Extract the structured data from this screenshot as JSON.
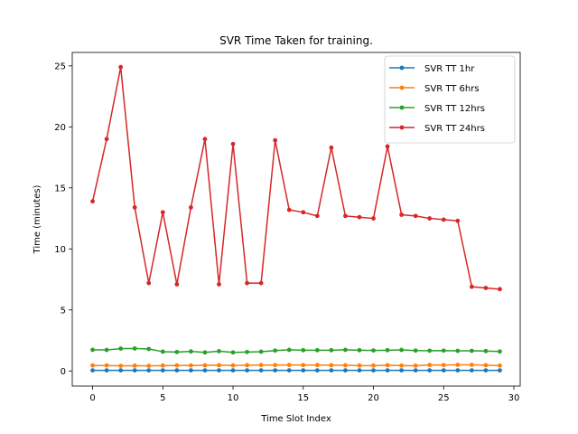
{
  "chart_data": {
    "type": "line",
    "title": "SVR Time Taken for training.",
    "xlabel": "Time Slot Index",
    "ylabel": "Time (minutes)",
    "xlim": [
      -1.45,
      30.45
    ],
    "ylim": [
      -1.24,
      26.1
    ],
    "x_ticks": [
      0,
      5,
      10,
      15,
      20,
      25,
      30
    ],
    "y_ticks": [
      0,
      5,
      10,
      15,
      20,
      25
    ],
    "grid": false,
    "legend_position": "top-right",
    "x": [
      0,
      1,
      2,
      3,
      4,
      5,
      6,
      7,
      8,
      9,
      10,
      11,
      12,
      13,
      14,
      15,
      16,
      17,
      18,
      19,
      20,
      21,
      22,
      23,
      24,
      25,
      26,
      27,
      28,
      29
    ],
    "series": [
      {
        "name": "SVR TT 1hr",
        "color": "#1f77b4",
        "values": [
          0.05,
          0.05,
          0.05,
          0.05,
          0.05,
          0.05,
          0.05,
          0.05,
          0.05,
          0.05,
          0.05,
          0.05,
          0.05,
          0.05,
          0.05,
          0.05,
          0.05,
          0.05,
          0.05,
          0.05,
          0.05,
          0.05,
          0.05,
          0.05,
          0.05,
          0.05,
          0.05,
          0.05,
          0.05,
          0.05
        ]
      },
      {
        "name": "SVR TT 6hrs",
        "color": "#ff7f0e",
        "values": [
          0.45,
          0.45,
          0.42,
          0.43,
          0.42,
          0.44,
          0.45,
          0.45,
          0.46,
          0.47,
          0.45,
          0.47,
          0.48,
          0.48,
          0.49,
          0.48,
          0.48,
          0.47,
          0.46,
          0.44,
          0.44,
          0.47,
          0.44,
          0.43,
          0.49,
          0.48,
          0.5,
          0.5,
          0.47,
          0.44
        ]
      },
      {
        "name": "SVR TT 12hrs",
        "color": "#2ca02c",
        "values": [
          1.73,
          1.72,
          1.83,
          1.84,
          1.8,
          1.58,
          1.55,
          1.6,
          1.52,
          1.62,
          1.52,
          1.55,
          1.58,
          1.67,
          1.73,
          1.7,
          1.7,
          1.7,
          1.73,
          1.7,
          1.68,
          1.7,
          1.72,
          1.67,
          1.66,
          1.67,
          1.65,
          1.65,
          1.63,
          1.59
        ]
      },
      {
        "name": "SVR TT 24hrs",
        "color": "#d62728",
        "values": [
          13.9,
          19.0,
          24.9,
          13.4,
          7.2,
          13.0,
          7.1,
          13.4,
          19.0,
          7.1,
          18.6,
          7.2,
          7.2,
          18.9,
          13.2,
          13.0,
          12.7,
          18.3,
          12.7,
          12.6,
          12.5,
          18.4,
          12.8,
          12.7,
          12.5,
          12.4,
          12.3,
          6.9,
          6.8,
          6.7
        ]
      }
    ]
  }
}
